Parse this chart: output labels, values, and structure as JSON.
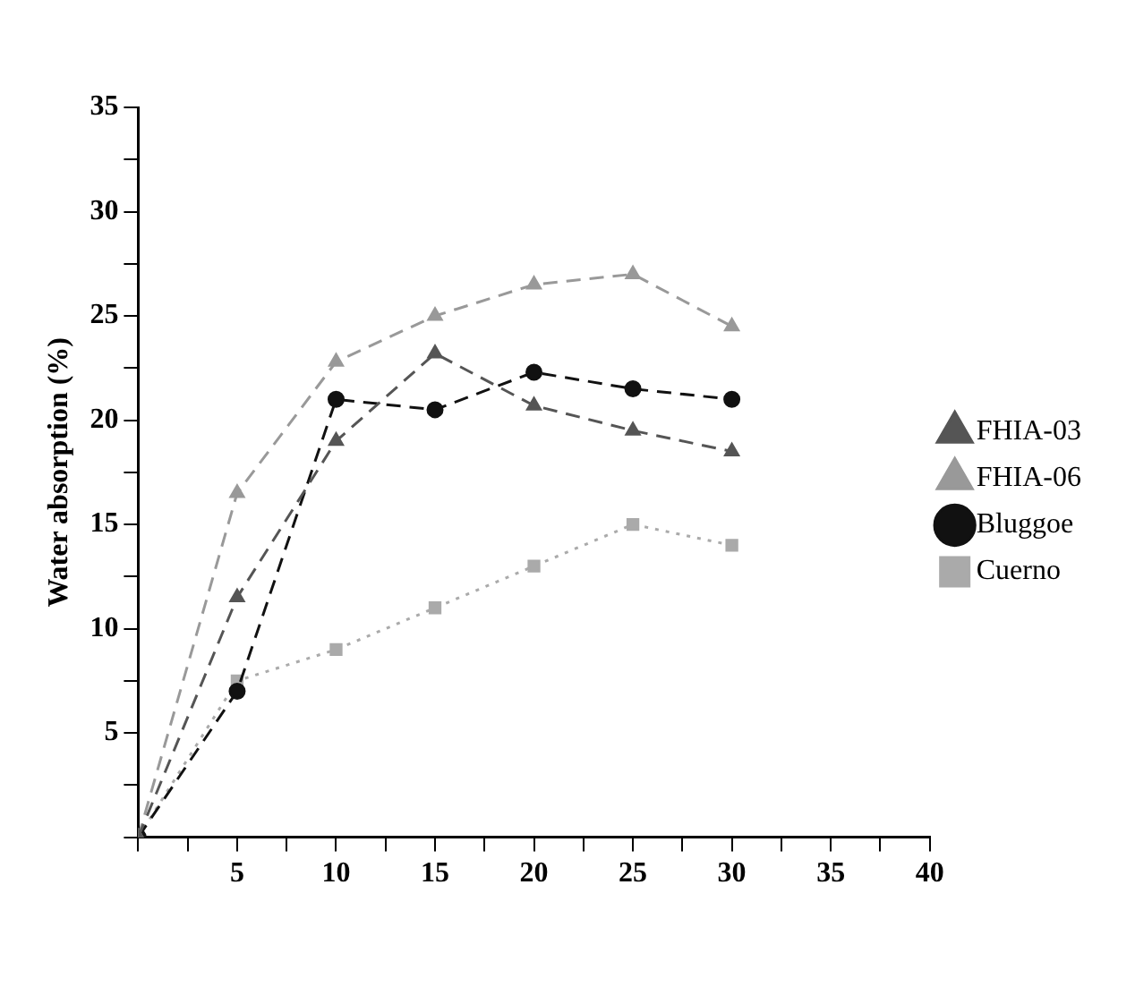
{
  "chart_data": {
    "type": "line",
    "ylabel": "Water absorption (%)",
    "x": [
      0,
      5,
      10,
      15,
      20,
      25,
      30
    ],
    "series": [
      {
        "name": "FHIA-03",
        "color": "#555555",
        "marker": "triangle",
        "line_style": "dashed",
        "values": [
          0,
          11.5,
          19,
          23.2,
          20.7,
          19.5,
          18.5
        ]
      },
      {
        "name": "FHIA-06",
        "color": "#999999",
        "marker": "triangle",
        "line_style": "dashed",
        "values": [
          0,
          16.5,
          22.8,
          25,
          26.5,
          27,
          24.5
        ]
      },
      {
        "name": "Bluggoe",
        "color": "#111111",
        "marker": "circle",
        "line_style": "dashed",
        "values": [
          0,
          7,
          21,
          20.5,
          22.3,
          21.5,
          21
        ]
      },
      {
        "name": "Cuerno",
        "color": "#aaaaaa",
        "marker": "square",
        "line_style": "dotted",
        "values": [
          0,
          7.5,
          9,
          11,
          13,
          15,
          14
        ]
      }
    ],
    "xlim": [
      0,
      40
    ],
    "xticks": [
      {
        "value": 0,
        "label": null
      },
      {
        "value": 2.5,
        "label": null
      },
      5,
      {
        "value": 7.5,
        "label": null
      },
      10,
      {
        "value": 12.5,
        "label": null
      },
      15,
      {
        "value": 17.5,
        "label": null
      },
      20,
      {
        "value": 22.5,
        "label": null
      },
      25,
      {
        "value": 27.5,
        "label": null
      },
      30,
      {
        "value": 32.5,
        "label": null
      },
      35,
      {
        "value": 37.5,
        "label": null
      },
      40
    ],
    "ylim": [
      0,
      35
    ],
    "yticks": [
      {
        "value": 0,
        "label": null
      },
      {
        "value": 2.5,
        "label": null
      },
      5,
      {
        "value": 7.5,
        "label": null
      },
      10,
      {
        "value": 12.5,
        "label": null
      },
      15,
      {
        "value": 17.5,
        "label": null
      },
      20,
      {
        "value": 22.5,
        "label": null
      },
      25,
      {
        "value": 27.5,
        "label": null
      },
      30,
      {
        "value": 32.5,
        "label": null
      },
      35
    ],
    "grid": false,
    "legend": "right"
  }
}
